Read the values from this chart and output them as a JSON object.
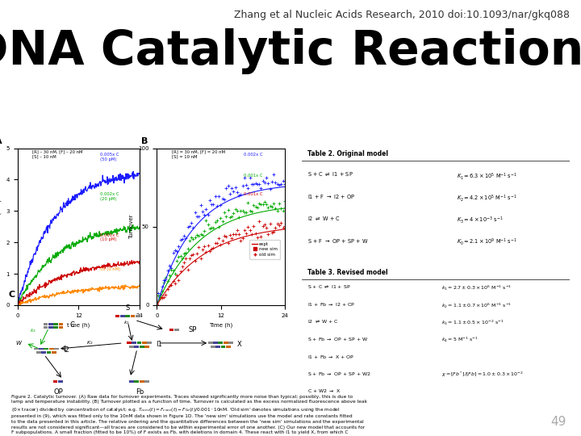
{
  "citation": "Zhang et al Nucleic Acids Research, 2010 doi:10.1093/nar/gkq088",
  "title": "DNA Catalytic Reactions",
  "page_number": "49",
  "background_color": "#ffffff",
  "title_fontsize": 42,
  "citation_fontsize": 9,
  "page_fontsize": 11,
  "title_color": "#000000",
  "citation_color": "#333333",
  "page_color": "#aaaaaa"
}
